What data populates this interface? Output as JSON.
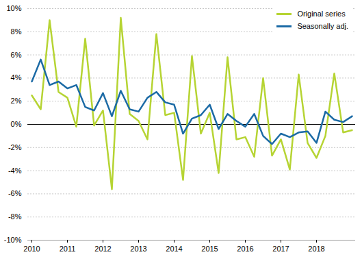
{
  "chart_data": {
    "type": "line",
    "categories": [
      "2010",
      null,
      null,
      null,
      "2011",
      null,
      null,
      null,
      "2012",
      null,
      null,
      null,
      "2013",
      null,
      null,
      null,
      "2014",
      null,
      null,
      null,
      "2015",
      null,
      null,
      null,
      "2016",
      null,
      null,
      null,
      "2017",
      null,
      null,
      null,
      "2018",
      null,
      null,
      null,
      null
    ],
    "series": [
      {
        "name": "Original series",
        "color": "#b6d433",
        "values": [
          2.5,
          1.3,
          9.0,
          2.8,
          2.3,
          -0.2,
          7.4,
          -0.1,
          1.2,
          -5.6,
          9.2,
          0.9,
          0.3,
          -1.3,
          7.8,
          0.8,
          1.0,
          -4.8,
          5.9,
          -0.8,
          1.0,
          -4.2,
          5.8,
          -1.3,
          -1.1,
          -2.8,
          4.0,
          -2.7,
          -1.3,
          -3.9,
          4.3,
          -1.6,
          -2.9,
          -1.0,
          4.4,
          -0.7,
          -0.5
        ]
      },
      {
        "name": "Seasonally adj.",
        "color": "#1b6aa5",
        "values": [
          3.7,
          5.6,
          3.4,
          3.7,
          3.1,
          3.4,
          1.5,
          1.2,
          2.7,
          0.7,
          2.9,
          1.3,
          1.1,
          2.3,
          2.8,
          1.9,
          1.7,
          -0.8,
          0.5,
          0.8,
          1.7,
          -0.4,
          0.9,
          0.3,
          -0.2,
          0.9,
          -1.0,
          -1.7,
          -0.8,
          -1.1,
          -0.7,
          -0.6,
          -1.6,
          1.1,
          0.4,
          0.2,
          0.7
        ]
      }
    ],
    "ylim": [
      -10,
      10
    ],
    "yticks": [
      {
        "value": -10,
        "label": "-10%"
      },
      {
        "value": -8,
        "label": "-8%"
      },
      {
        "value": -6,
        "label": "-6%"
      },
      {
        "value": -4,
        "label": "-4%"
      },
      {
        "value": -2,
        "label": "-2%"
      },
      {
        "value": 0,
        "label": "0%"
      },
      {
        "value": 2,
        "label": "2%"
      },
      {
        "value": 4,
        "label": "4%"
      },
      {
        "value": 6,
        "label": "6%"
      },
      {
        "value": 8,
        "label": "8%"
      },
      {
        "value": 10,
        "label": "10%"
      }
    ],
    "grid": true,
    "legend": "top-right"
  }
}
